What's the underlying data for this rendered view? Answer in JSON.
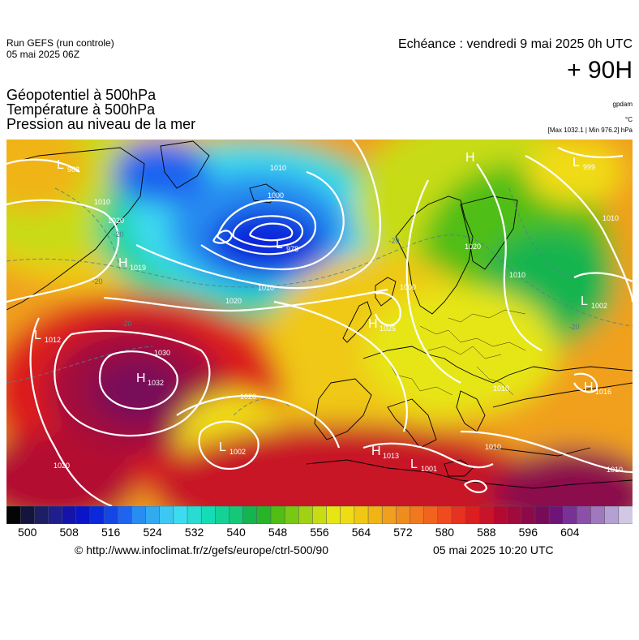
{
  "header": {
    "run_line1": "Run GEFS (run controle)",
    "run_line2": "05 mai 2025 06Z",
    "echeance": "Echéance : vendredi 9 mai 2025 0h UTC",
    "lead_time": "+ 90H"
  },
  "titles": {
    "line1": "Géopotentiel à 500hPa",
    "line2": "Température à 500hPa",
    "line3": "Pression au niveau de la mer"
  },
  "units": {
    "geopotential": "gpdam",
    "temperature": "°C",
    "pressure_range": "[Max 1032.1 | Min 976.2] hPa"
  },
  "colorbar": {
    "tick_labels": [
      "500",
      "508",
      "516",
      "524",
      "532",
      "540",
      "548",
      "556",
      "564",
      "572",
      "580",
      "588",
      "596",
      "604"
    ],
    "colors": [
      "#050505",
      "#14143c",
      "#1e1e64",
      "#1e1e8c",
      "#1414aa",
      "#0a14c8",
      "#0a28dc",
      "#1446e6",
      "#1e64f0",
      "#288cf0",
      "#32aaf0",
      "#3cc8f0",
      "#3cdcf0",
      "#28dcd2",
      "#14dcb4",
      "#14d296",
      "#14c878",
      "#14b450",
      "#28b428",
      "#50be14",
      "#78c814",
      "#a0d214",
      "#c8dc14",
      "#e6e614",
      "#f0dc14",
      "#f0c814",
      "#f0b414",
      "#f0a01e",
      "#f08c1e",
      "#f0781e",
      "#f0641e",
      "#f04b1e",
      "#e6321e",
      "#dc1e1e",
      "#c81428",
      "#b40a32",
      "#a00a3c",
      "#8c0a4b",
      "#780a5a",
      "#6e1478",
      "#783296",
      "#8c50aa",
      "#a078be",
      "#b4a0d2",
      "#d2c8e6"
    ]
  },
  "pressure_centers": [
    {
      "type": "L",
      "value": "988"
    },
    {
      "type": "H",
      "value": "1019"
    },
    {
      "type": "L",
      "value": "1012"
    },
    {
      "type": "L",
      "value": "978"
    },
    {
      "type": "H",
      "value": "1032"
    },
    {
      "type": "L",
      "value": "1002"
    },
    {
      "type": "H",
      "value": "1025"
    },
    {
      "type": "H",
      "value": "1013"
    },
    {
      "type": "L",
      "value": "1001"
    },
    {
      "type": "H",
      "value": ""
    },
    {
      "type": "L",
      "value": "999"
    },
    {
      "type": "L",
      "value": "1002"
    },
    {
      "type": "H",
      "value": "1016"
    }
  ],
  "isobar_labels": [
    "1010",
    "1000",
    "1010",
    "1010",
    "1020",
    "1020",
    "1030",
    "1020",
    "1020",
    "1010",
    "1010",
    "1010",
    "1020",
    "1010",
    "1010",
    "1000"
  ],
  "isotherm_labels": [
    "-20",
    "-20",
    "-20",
    "-20",
    "-20"
  ],
  "footer": {
    "url": "© http://www.infoclimat.fr/z/gefs/europe/ctrl-500/90",
    "timestamp": "05 mai 2025 10:20 UTC"
  }
}
